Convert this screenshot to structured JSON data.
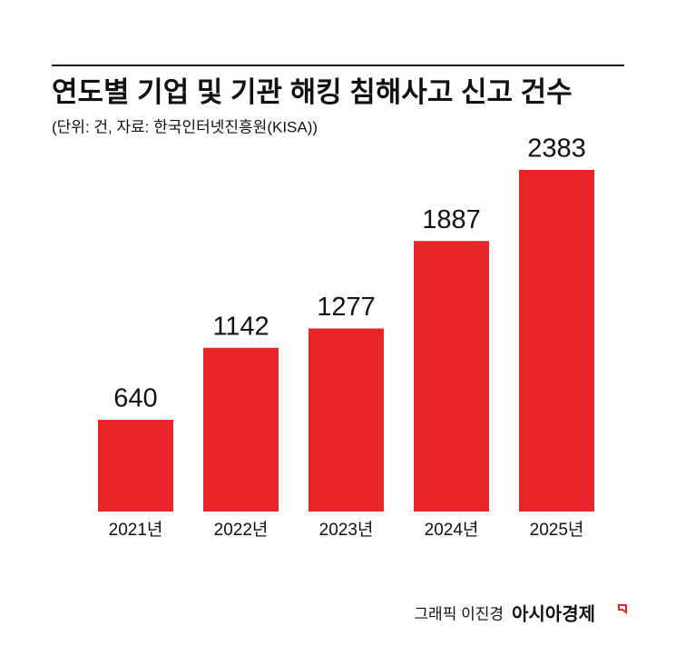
{
  "chart_data": {
    "type": "bar",
    "title": "연도별 기업 및 기관 해킹 침해사고 신고 건수",
    "subtitle": "(단위: 건, 자료: 한국인터넷진흥원(KISA))",
    "categories": [
      "2021년",
      "2022년",
      "2023년",
      "2024년",
      "2025년"
    ],
    "values": [
      640,
      1142,
      1277,
      1887,
      2383
    ],
    "color": "#e8262a",
    "credit": "그래픽 이진경",
    "publisher": "아시아경제"
  }
}
